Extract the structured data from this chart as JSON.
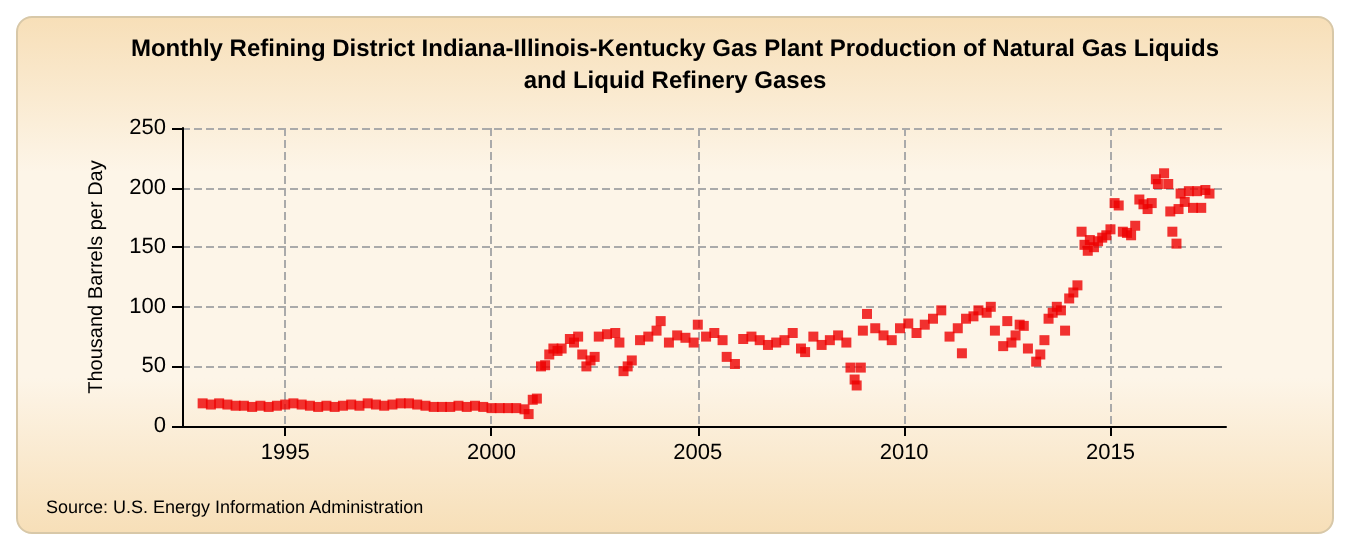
{
  "chart_data": {
    "type": "scatter",
    "title": "Monthly Refining District Indiana-Illinois-Kentucky Gas Plant Production of Natural Gas Liquids\nand Liquid Refinery Gases",
    "ylabel": "Thousand Barrels per Day",
    "annotations": [
      "Source: U.S. Energy Information Administration"
    ],
    "xlim": [
      1992.5,
      2017.8
    ],
    "xticks": [
      1995,
      2000,
      2005,
      2010,
      2015
    ],
    "ylim": [
      0,
      250
    ],
    "yticks": [
      0,
      50,
      100,
      150,
      200,
      250
    ],
    "grid": true,
    "marker": "square",
    "series": [
      {
        "color": "#ee0000",
        "x": [
          1993.0,
          1993.2,
          1993.4,
          1993.6,
          1993.8,
          1994.0,
          1994.2,
          1994.4,
          1994.6,
          1994.8,
          1995.0,
          1995.2,
          1995.4,
          1995.6,
          1995.8,
          1996.0,
          1996.2,
          1996.4,
          1996.6,
          1996.8,
          1997.0,
          1997.2,
          1997.4,
          1997.6,
          1997.8,
          1998.0,
          1998.2,
          1998.4,
          1998.6,
          1998.8,
          1999.0,
          1999.2,
          1999.4,
          1999.6,
          1999.8,
          2000.0,
          2000.2,
          2000.4,
          2000.6,
          2000.8,
          2000.9,
          2001.0,
          2001.1,
          2001.2,
          2001.3,
          2001.4,
          2001.5,
          2001.6,
          2001.7,
          2001.9,
          2002.0,
          2002.1,
          2002.2,
          2002.3,
          2002.4,
          2002.5,
          2002.6,
          2002.8,
          2003.0,
          2003.1,
          2003.2,
          2003.3,
          2003.4,
          2003.6,
          2003.8,
          2004.0,
          2004.1,
          2004.3,
          2004.5,
          2004.7,
          2004.9,
          2005.0,
          2005.2,
          2005.4,
          2005.6,
          2005.7,
          2005.9,
          2006.1,
          2006.3,
          2006.5,
          2006.7,
          2006.9,
          2007.1,
          2007.3,
          2007.5,
          2007.6,
          2007.8,
          2008.0,
          2008.2,
          2008.4,
          2008.6,
          2008.7,
          2008.8,
          2008.85,
          2008.95,
          2009.0,
          2009.1,
          2009.3,
          2009.5,
          2009.7,
          2009.9,
          2010.1,
          2010.3,
          2010.5,
          2010.7,
          2010.9,
          2011.1,
          2011.3,
          2011.4,
          2011.5,
          2011.68,
          2011.8,
          2012.0,
          2012.1,
          2012.2,
          2012.4,
          2012.5,
          2012.6,
          2012.7,
          2012.8,
          2012.9,
          2013.0,
          2013.2,
          2013.3,
          2013.4,
          2013.5,
          2013.6,
          2013.7,
          2013.8,
          2013.9,
          2014.0,
          2014.1,
          2014.2,
          2014.3,
          2014.37,
          2014.45,
          2014.5,
          2014.6,
          2014.7,
          2014.8,
          2014.9,
          2015.0,
          2015.1,
          2015.2,
          2015.3,
          2015.4,
          2015.5,
          2015.6,
          2015.7,
          2015.8,
          2015.9,
          2016.0,
          2016.1,
          2016.15,
          2016.3,
          2016.4,
          2016.45,
          2016.5,
          2016.6,
          2016.65,
          2016.7,
          2016.8,
          2016.9,
          2017.0,
          2017.1,
          2017.2,
          2017.3,
          2017.4
        ],
        "values": [
          19,
          18,
          19,
          18,
          17,
          17,
          16,
          17,
          16,
          17,
          18,
          19,
          18,
          17,
          16,
          17,
          16,
          17,
          18,
          17,
          19,
          18,
          17,
          18,
          19,
          19,
          18,
          17,
          16,
          16,
          16,
          17,
          16,
          17,
          16,
          15,
          15,
          15,
          15,
          14,
          10,
          22,
          23,
          50,
          51,
          60,
          65,
          63,
          65,
          73,
          70,
          75,
          60,
          50,
          55,
          58,
          75,
          77,
          78,
          70,
          46,
          50,
          55,
          72,
          75,
          80,
          88,
          70,
          76,
          74,
          70,
          85,
          75,
          78,
          72,
          58,
          52,
          73,
          75,
          72,
          68,
          70,
          72,
          78,
          65,
          62,
          75,
          68,
          72,
          76,
          70,
          49,
          39,
          34,
          49,
          80,
          94,
          82,
          76,
          72,
          82,
          86,
          78,
          85,
          90,
          97,
          75,
          82,
          61,
          90,
          92,
          97,
          95,
          100,
          80,
          67,
          88,
          70,
          76,
          85,
          84,
          65,
          54,
          60,
          72,
          90,
          95,
          100,
          97,
          80,
          107,
          112,
          118,
          163,
          152,
          147,
          156,
          150,
          155,
          158,
          160,
          165,
          187,
          185,
          163,
          162,
          160,
          168,
          190,
          186,
          182,
          187,
          207,
          203,
          212,
          203,
          180,
          163,
          153,
          182,
          195,
          188,
          197,
          183,
          197,
          183,
          198,
          195
        ]
      }
    ]
  }
}
